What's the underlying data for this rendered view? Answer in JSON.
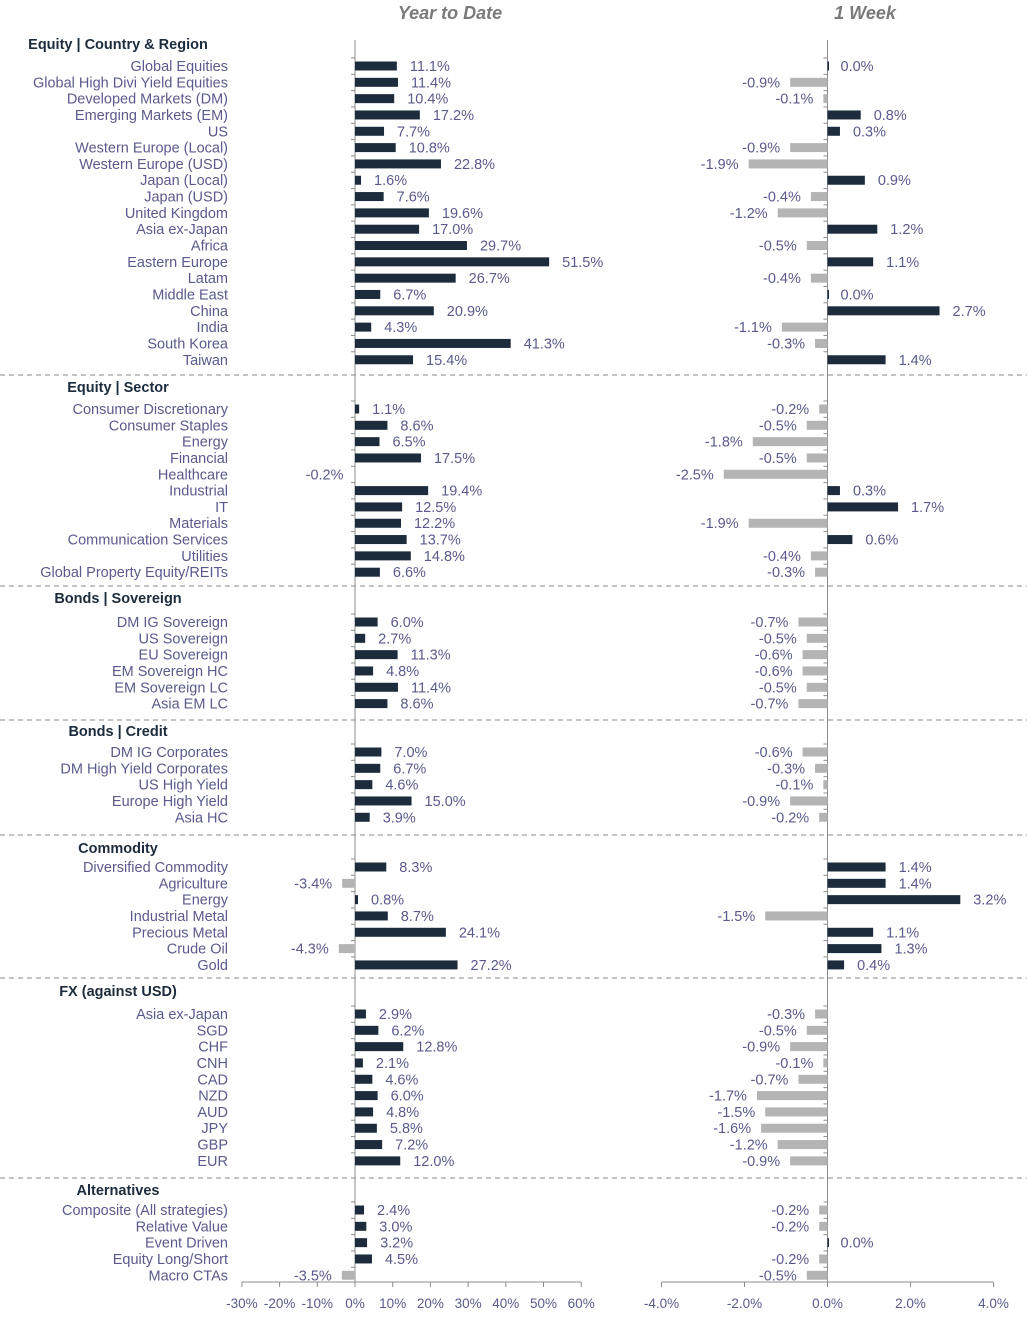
{
  "chart_data": {
    "type": "bar",
    "orientation": "horizontal",
    "panels": [
      {
        "title": "Year to Date",
        "xlim": [
          -30,
          60
        ],
        "ticks": [
          "-30%",
          "-20%",
          "-10%",
          "0%",
          "10%",
          "20%",
          "30%",
          "40%",
          "50%",
          "60%"
        ],
        "tick_values": [
          -30,
          -20,
          -10,
          0,
          10,
          20,
          30,
          40,
          50,
          60
        ]
      },
      {
        "title": "1 Week",
        "xlim": [
          -4,
          4
        ],
        "ticks": [
          "-4.0%",
          "-2.0%",
          "0.0%",
          "2.0%",
          "4.0%"
        ],
        "tick_values": [
          -4,
          -2,
          0,
          2,
          4
        ]
      }
    ],
    "colors": {
      "positive": "#1c2c3c",
      "negative": "#b4b4b4",
      "labels": "#5a5a8c",
      "headers": "#1c2c3c",
      "divider": "#a0a0a0"
    },
    "groups": [
      {
        "name": "Equity | Country & Region",
        "items": [
          {
            "label": "Global Equities",
            "ytd": 11.1,
            "week": 0.0
          },
          {
            "label": "Global High Divi Yield Equities",
            "ytd": 11.4,
            "week": -0.9
          },
          {
            "label": "Developed Markets (DM)",
            "ytd": 10.4,
            "week": -0.1
          },
          {
            "label": "Emerging Markets (EM)",
            "ytd": 17.2,
            "week": 0.8
          },
          {
            "label": "US",
            "ytd": 7.7,
            "week": 0.3
          },
          {
            "label": "Western Europe (Local)",
            "ytd": 10.8,
            "week": -0.9
          },
          {
            "label": "Western Europe (USD)",
            "ytd": 22.8,
            "week": -1.9
          },
          {
            "label": "Japan (Local)",
            "ytd": 1.6,
            "week": 0.9
          },
          {
            "label": "Japan (USD)",
            "ytd": 7.6,
            "week": -0.4
          },
          {
            "label": "United Kingdom",
            "ytd": 19.6,
            "week": -1.2
          },
          {
            "label": "Asia ex-Japan",
            "ytd": 17.0,
            "week": 1.2
          },
          {
            "label": "Africa",
            "ytd": 29.7,
            "week": -0.5
          },
          {
            "label": "Eastern Europe",
            "ytd": 51.5,
            "week": 1.1
          },
          {
            "label": "Latam",
            "ytd": 26.7,
            "week": -0.4
          },
          {
            "label": "Middle East",
            "ytd": 6.7,
            "week": 0.0
          },
          {
            "label": "China",
            "ytd": 20.9,
            "week": 2.7
          },
          {
            "label": "India",
            "ytd": 4.3,
            "week": -1.1
          },
          {
            "label": "South Korea",
            "ytd": 41.3,
            "week": -0.3
          },
          {
            "label": "Taiwan",
            "ytd": 15.4,
            "week": 1.4
          }
        ]
      },
      {
        "name": "Equity | Sector",
        "items": [
          {
            "label": "Consumer Discretionary",
            "ytd": 1.1,
            "week": -0.2
          },
          {
            "label": "Consumer Staples",
            "ytd": 8.6,
            "week": -0.5
          },
          {
            "label": "Energy",
            "ytd": 6.5,
            "week": -1.8
          },
          {
            "label": "Financial",
            "ytd": 17.5,
            "week": -0.5
          },
          {
            "label": "Healthcare",
            "ytd": -0.2,
            "week": -2.5
          },
          {
            "label": "Industrial",
            "ytd": 19.4,
            "week": 0.3
          },
          {
            "label": "IT",
            "ytd": 12.5,
            "week": 1.7
          },
          {
            "label": "Materials",
            "ytd": 12.2,
            "week": -1.9
          },
          {
            "label": "Communication Services",
            "ytd": 13.7,
            "week": 0.6
          },
          {
            "label": "Utilities",
            "ytd": 14.8,
            "week": -0.4
          },
          {
            "label": "Global Property Equity/REITs",
            "ytd": 6.6,
            "week": -0.3
          }
        ]
      },
      {
        "name": "Bonds | Sovereign",
        "items": [
          {
            "label": "DM IG Sovereign",
            "ytd": 6.0,
            "week": -0.7
          },
          {
            "label": "US Sovereign",
            "ytd": 2.7,
            "week": -0.5
          },
          {
            "label": "EU Sovereign",
            "ytd": 11.3,
            "week": -0.6
          },
          {
            "label": "EM Sovereign HC",
            "ytd": 4.8,
            "week": -0.6
          },
          {
            "label": "EM Sovereign LC",
            "ytd": 11.4,
            "week": -0.5
          },
          {
            "label": "Asia EM LC",
            "ytd": 8.6,
            "week": -0.7
          }
        ]
      },
      {
        "name": "Bonds | Credit",
        "items": [
          {
            "label": "DM IG Corporates",
            "ytd": 7.0,
            "week": -0.6
          },
          {
            "label": "DM High Yield Corporates",
            "ytd": 6.7,
            "week": -0.3
          },
          {
            "label": "US High Yield",
            "ytd": 4.6,
            "week": -0.1
          },
          {
            "label": "Europe High Yield",
            "ytd": 15.0,
            "week": -0.9
          },
          {
            "label": "Asia HC",
            "ytd": 3.9,
            "week": -0.2
          }
        ]
      },
      {
        "name": "Commodity",
        "items": [
          {
            "label": "Diversified Commodity",
            "ytd": 8.3,
            "week": 1.4
          },
          {
            "label": "Agriculture",
            "ytd": -3.4,
            "week": 1.4
          },
          {
            "label": "Energy",
            "ytd": 0.8,
            "week": 3.2
          },
          {
            "label": "Industrial Metal",
            "ytd": 8.7,
            "week": -1.5
          },
          {
            "label": "Precious Metal",
            "ytd": 24.1,
            "week": 1.1
          },
          {
            "label": "Crude Oil",
            "ytd": -4.3,
            "week": 1.3
          },
          {
            "label": "Gold",
            "ytd": 27.2,
            "week": 0.4
          }
        ]
      },
      {
        "name": "FX (against USD)",
        "items": [
          {
            "label": "Asia ex-Japan",
            "ytd": 2.9,
            "week": -0.3
          },
          {
            "label": "SGD",
            "ytd": 6.2,
            "week": -0.5
          },
          {
            "label": "CHF",
            "ytd": 12.8,
            "week": -0.9
          },
          {
            "label": "CNH",
            "ytd": 2.1,
            "week": -0.1
          },
          {
            "label": "CAD",
            "ytd": 4.6,
            "week": -0.7
          },
          {
            "label": "NZD",
            "ytd": 6.0,
            "week": -1.7
          },
          {
            "label": "AUD",
            "ytd": 4.8,
            "week": -1.5
          },
          {
            "label": "JPY",
            "ytd": 5.8,
            "week": -1.6
          },
          {
            "label": "GBP",
            "ytd": 7.2,
            "week": -1.2
          },
          {
            "label": "EUR",
            "ytd": 12.0,
            "week": -0.9
          }
        ]
      },
      {
        "name": "Alternatives",
        "items": [
          {
            "label": "Composite (All strategies)",
            "ytd": 2.4,
            "week": -0.2
          },
          {
            "label": "Relative Value",
            "ytd": 3.0,
            "week": -0.2
          },
          {
            "label": "Event Driven",
            "ytd": 3.2,
            "week": 0.0
          },
          {
            "label": "Equity Long/Short",
            "ytd": 4.5,
            "week": -0.2
          },
          {
            "label": "Macro CTAs",
            "ytd": -3.5,
            "week": -0.5
          }
        ]
      }
    ]
  }
}
